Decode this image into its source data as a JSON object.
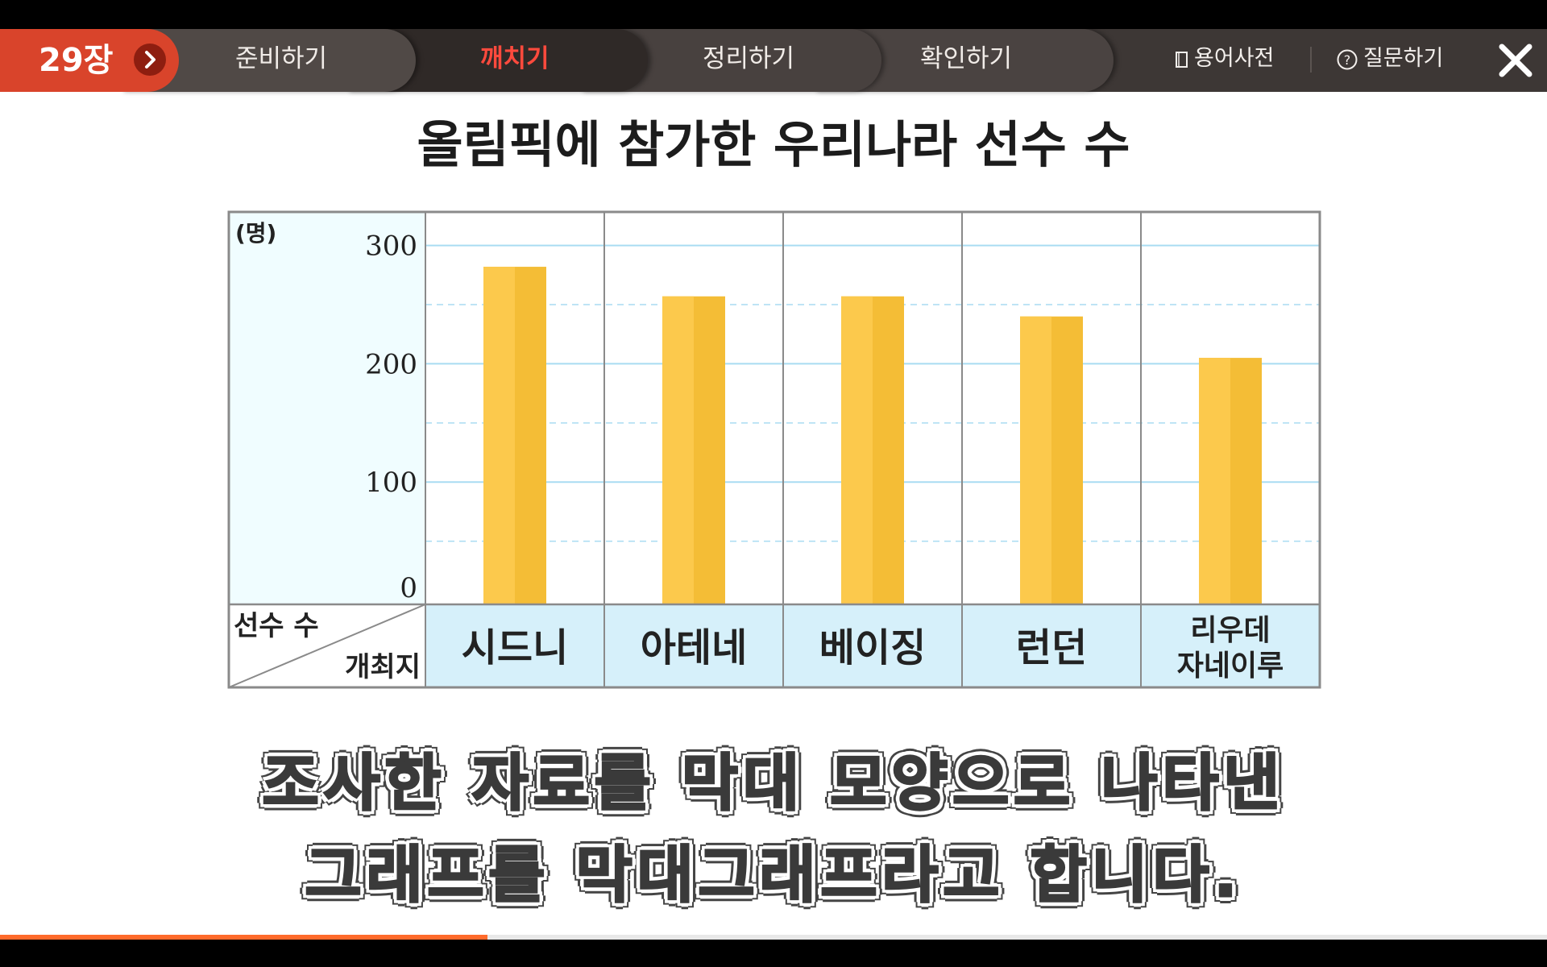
{
  "nav": {
    "chapter": "29장",
    "tabs": [
      {
        "label": "준비하기",
        "active": false
      },
      {
        "label": "깨치기",
        "active": true
      },
      {
        "label": "정리하기",
        "active": false
      },
      {
        "label": "확인하기",
        "active": false
      }
    ],
    "dictionary_label": "용어사전",
    "question_label": "질문하기"
  },
  "colors": {
    "chapter_badge": "#d9442b",
    "nav_background": "#3d3735",
    "active_tab_text": "#ff4a3d",
    "bar": "#f4bd36",
    "plot_background": "#f0fdff",
    "category_cell": "#d6f0fa",
    "gridline": "#a9dcf2",
    "progress": "#ff6a2b"
  },
  "chart_data": {
    "type": "bar",
    "title": "올림픽에 참가한 우리나라 선수 수",
    "unit_label": "(명)",
    "categories": [
      "시드니",
      "아테네",
      "베이징",
      "런던",
      [
        "리우데",
        "자네이루"
      ]
    ],
    "values": [
      282,
      257,
      257,
      240,
      205
    ],
    "y_ticks": [
      "0",
      "100",
      "200",
      "300"
    ],
    "ylim": [
      0,
      340
    ],
    "corner_labels": {
      "top": "선수 수",
      "bottom": "개최지"
    },
    "grid": true
  },
  "caption": {
    "line1": "조사한 자료를 막대 모양으로 나타낸",
    "line2": "그래프를 막대그래프라고 합니다."
  },
  "progress": {
    "fraction": 0.315
  }
}
